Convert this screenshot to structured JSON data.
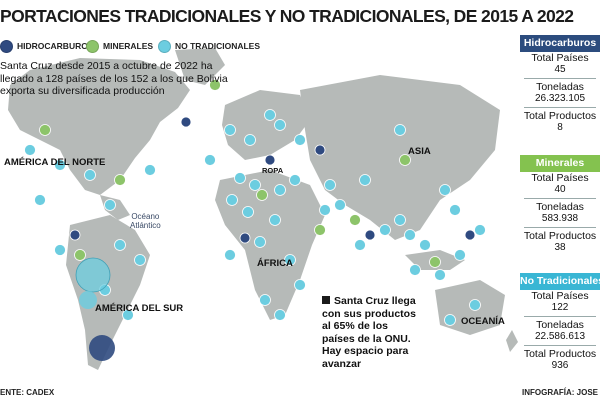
{
  "title": "PORTACIONES TRADICIONALES Y NO TRADICIONALES, DE 2015 A 2022",
  "legend": {
    "hidrocarburos": "HIDROCARBUROS",
    "minerales": "MINERALES",
    "no_tradicionales": "NO TRADICIONALES"
  },
  "intro": {
    "line1": "Santa Cruz desde 2015 a octubre de 2022 ha",
    "line2": "llegado a 128 países de los 152 a los que Bolivia",
    "line3": "exporta su diversificada producción"
  },
  "continents": {
    "north_america": "AMÉRICA DEL NORTE",
    "south_america": "AMÉRICA DEL SUR",
    "africa": "ÁFRICA",
    "asia": "ASIA",
    "oceania": "OCEANÍA",
    "europe": "ROPA"
  },
  "ocean": {
    "line1": "Océano",
    "line2": "Atlántico"
  },
  "note": {
    "line1": "Santa Cruz llega",
    "line2": "con sus productos",
    "line3": "al 65% de los",
    "line4": "países de la ONU.",
    "line5": "Hay espacio para",
    "line6": "avanzar"
  },
  "footer": {
    "source": "ENTE: CADEX",
    "credit": "INFOGRAFÍA: JOSE"
  },
  "colors": {
    "hidrocarburos": "#2f4a80",
    "minerales": "#8dc46a",
    "no_tradicionales": "#6ccde0",
    "panel_hidro": "#2c4c7e",
    "panel_min": "#84c24f",
    "panel_no_trad": "#39b6d4",
    "land": "#b6bab8",
    "sea": "#ffffff"
  },
  "panels": [
    {
      "header": "Hidrocarburos",
      "total_paises_label": "Total Países",
      "total_paises": "45",
      "toneladas_label": "Toneladas",
      "toneladas": "26.323.105",
      "total_productos_label": "Total Productos",
      "total_productos": "8"
    },
    {
      "header": "Minerales",
      "total_paises_label": "Total Países",
      "total_paises": "40",
      "toneladas_label": "Toneladas",
      "toneladas": "583.938",
      "total_productos_label": "Total Productos",
      "total_productos": "38"
    },
    {
      "header": "No Tradicionales",
      "total_paises_label": "Total Países",
      "total_paises": "122",
      "toneladas_label": "Toneladas",
      "toneladas": "22.586.613",
      "total_productos_label": "Total Productos",
      "total_productos": "936"
    }
  ],
  "country_markers": [
    {
      "t": "h"
    },
    {
      "t": "m"
    },
    {
      "t": "n"
    },
    {
      "t": "n"
    },
    {
      "t": "n"
    },
    {
      "t": "m"
    },
    {
      "t": "n"
    },
    {
      "t": "n"
    },
    {
      "t": "n"
    },
    {
      "t": "h"
    },
    {
      "t": "n"
    },
    {
      "t": "n"
    },
    {
      "t": "n"
    },
    {
      "t": "m"
    },
    {
      "t": "n"
    },
    {
      "t": "n"
    },
    {
      "t": "n"
    },
    {
      "t": "h"
    },
    {
      "t": "n"
    },
    {
      "t": "n"
    },
    {
      "t": "m"
    },
    {
      "t": "n"
    },
    {
      "t": "n"
    },
    {
      "t": "n"
    },
    {
      "t": "n"
    },
    {
      "t": "n"
    },
    {
      "t": "h"
    },
    {
      "t": "n"
    },
    {
      "t": "n"
    },
    {
      "t": "m"
    },
    {
      "t": "n"
    },
    {
      "t": "n"
    },
    {
      "t": "n"
    },
    {
      "t": "n"
    },
    {
      "t": "n"
    },
    {
      "t": "n"
    },
    {
      "t": "m"
    },
    {
      "t": "n"
    },
    {
      "t": "h"
    },
    {
      "t": "n"
    },
    {
      "t": "n"
    },
    {
      "t": "n"
    },
    {
      "t": "n"
    },
    {
      "t": "m"
    },
    {
      "t": "n"
    },
    {
      "t": "n"
    },
    {
      "t": "n"
    },
    {
      "t": "h"
    },
    {
      "t": "n"
    },
    {
      "t": "n"
    },
    {
      "t": "n"
    },
    {
      "t": "m"
    },
    {
      "t": "n"
    },
    {
      "t": "n"
    },
    {
      "t": "n"
    },
    {
      "t": "n"
    },
    {
      "t": "h"
    },
    {
      "t": "n"
    },
    {
      "t": "n"
    },
    {
      "t": "n"
    },
    {
      "t": "m"
    },
    {
      "t": "n"
    },
    {
      "t": "n"
    },
    {
      "t": "n"
    }
  ]
}
